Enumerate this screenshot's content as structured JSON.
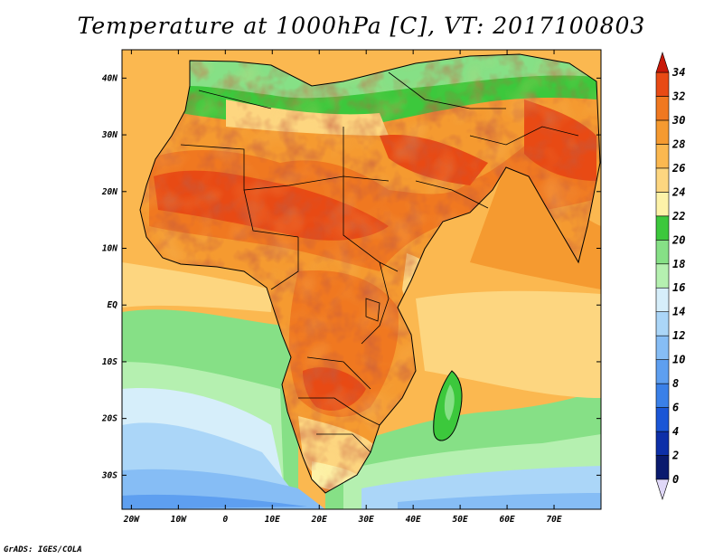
{
  "title": "Temperature at 1000hPa [C], VT: 2017100803",
  "credit": "GrADS: IGES/COLA",
  "map": {
    "lon_range": [
      -22,
      80
    ],
    "lat_range": [
      -36,
      45
    ],
    "lon_ticks": [
      {
        "value": -20,
        "label": "20W"
      },
      {
        "value": -10,
        "label": "10W"
      },
      {
        "value": 0,
        "label": "0"
      },
      {
        "value": 10,
        "label": "10E"
      },
      {
        "value": 20,
        "label": "20E"
      },
      {
        "value": 30,
        "label": "30E"
      },
      {
        "value": 40,
        "label": "40E"
      },
      {
        "value": 50,
        "label": "50E"
      },
      {
        "value": 60,
        "label": "60E"
      },
      {
        "value": 70,
        "label": "70E"
      }
    ],
    "lat_ticks": [
      {
        "value": 40,
        "label": "40N"
      },
      {
        "value": 30,
        "label": "30N"
      },
      {
        "value": 20,
        "label": "20N"
      },
      {
        "value": 10,
        "label": "10N"
      },
      {
        "value": 0,
        "label": "EQ"
      },
      {
        "value": -10,
        "label": "10S"
      },
      {
        "value": -20,
        "label": "20S"
      },
      {
        "value": -30,
        "label": "30S"
      }
    ]
  },
  "colorbar": {
    "levels": [
      0,
      2,
      4,
      6,
      8,
      10,
      12,
      14,
      16,
      18,
      20,
      22,
      24,
      26,
      28,
      30,
      32,
      34
    ],
    "labels": [
      "0",
      "2",
      "4",
      "6",
      "8",
      "10",
      "12",
      "14",
      "16",
      "18",
      "20",
      "22",
      "24",
      "26",
      "28",
      "30",
      "32",
      "34"
    ],
    "colors": [
      "#0a1a6e",
      "#0d2fa8",
      "#1a56d6",
      "#3a80e8",
      "#5e9ff0",
      "#86bdf5",
      "#abd6f8",
      "#d6eefa",
      "#b5f0b0",
      "#86e086",
      "#3cc83c",
      "#fdf2a8",
      "#fdd680",
      "#fbb850",
      "#f59a30",
      "#f07820",
      "#e84a14",
      "#cc1a0c"
    ],
    "under_color": "#e0d8f8",
    "over_color": "#c81808"
  }
}
